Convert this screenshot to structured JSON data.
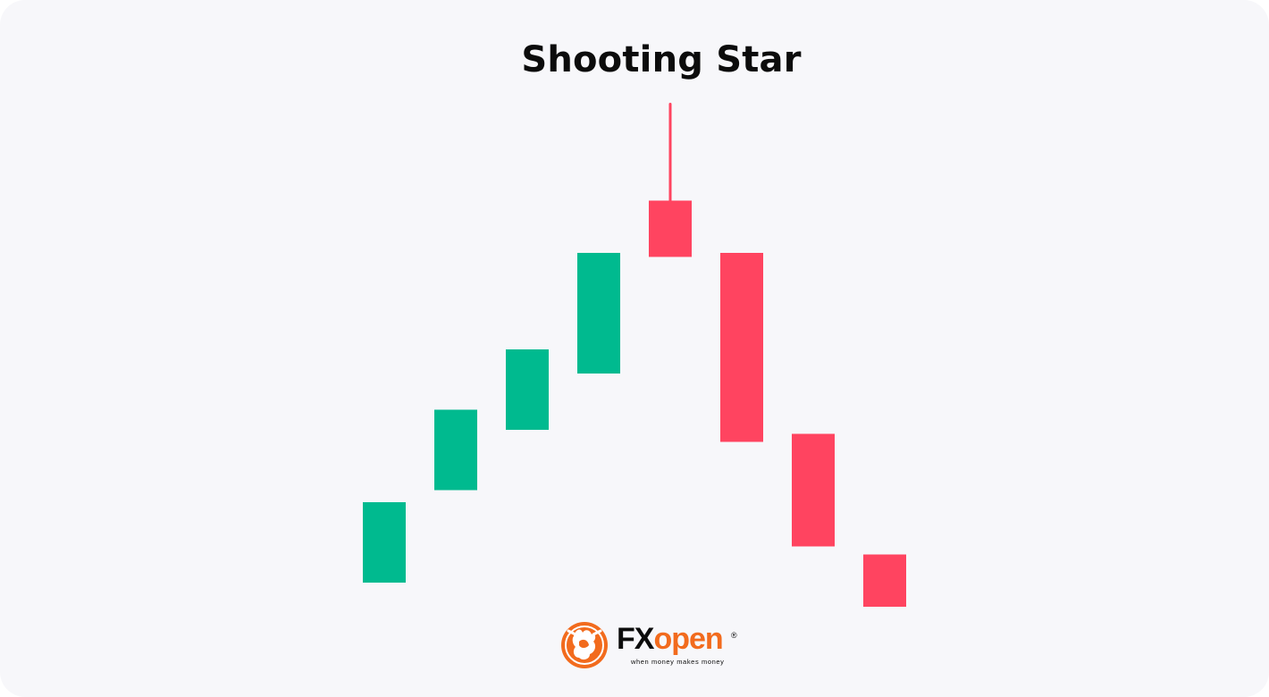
{
  "chart_data": {
    "type": "candlestick",
    "title": "Shooting Star",
    "xlabel": "",
    "ylabel": "",
    "grid": false,
    "legend": "none",
    "axes_visible": false,
    "y_range": [
      0,
      100
    ],
    "candles": [
      {
        "index": 1,
        "open": 5,
        "close": 25,
        "direction": "bullish"
      },
      {
        "index": 2,
        "open": 28,
        "close": 48,
        "direction": "bullish"
      },
      {
        "index": 3,
        "open": 43,
        "close": 63,
        "direction": "bullish"
      },
      {
        "index": 4,
        "open": 57,
        "close": 87,
        "direction": "bullish"
      },
      {
        "index": 5,
        "open": 100,
        "close": 86,
        "high": 124,
        "direction": "bearish",
        "pattern": "shooting star"
      },
      {
        "index": 6,
        "open": 87,
        "close": 40,
        "direction": "bearish"
      },
      {
        "index": 7,
        "open": 42,
        "close": 14,
        "direction": "bearish"
      },
      {
        "index": 8,
        "open": 12,
        "close": -1,
        "direction": "bearish"
      }
    ],
    "colors": {
      "bullish": "#00ba8f",
      "bearish": "#ff4460"
    }
  },
  "logo": {
    "word_dark": "FX",
    "word_accent": "open",
    "registered": "®",
    "tagline": "when money makes money",
    "accent_color": "#f26b1d"
  }
}
